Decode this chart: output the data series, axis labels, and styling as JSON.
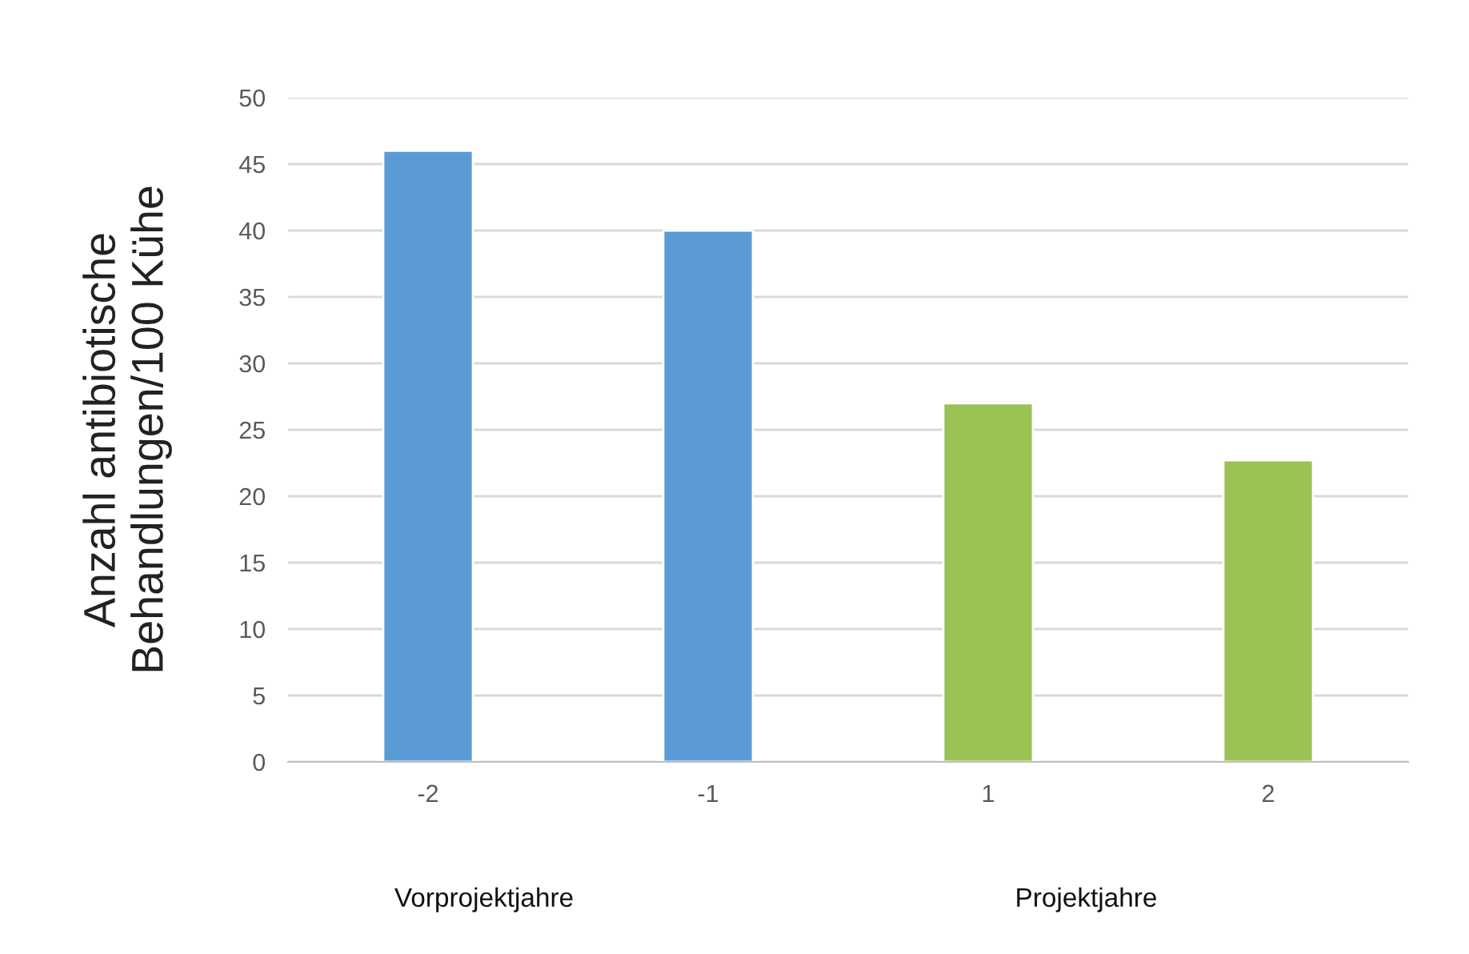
{
  "chart_data": {
    "type": "bar",
    "ylabel": "Anzahl antibiotische\nBehandlungen/100 Kühe",
    "categories": [
      "-2",
      "-1",
      "1",
      "2"
    ],
    "values": [
      46,
      40,
      27,
      22.7
    ],
    "colors": [
      "#5b9bd5",
      "#5b9bd5",
      "#9bc255",
      "#9bc255"
    ],
    "ylim": [
      0,
      50
    ],
    "yticks": [
      0,
      5,
      10,
      15,
      20,
      25,
      30,
      35,
      40,
      45,
      50
    ],
    "grid": "y",
    "legend": false,
    "annotations": [
      "Vorprojektjahre",
      "Projektjahre"
    ]
  }
}
